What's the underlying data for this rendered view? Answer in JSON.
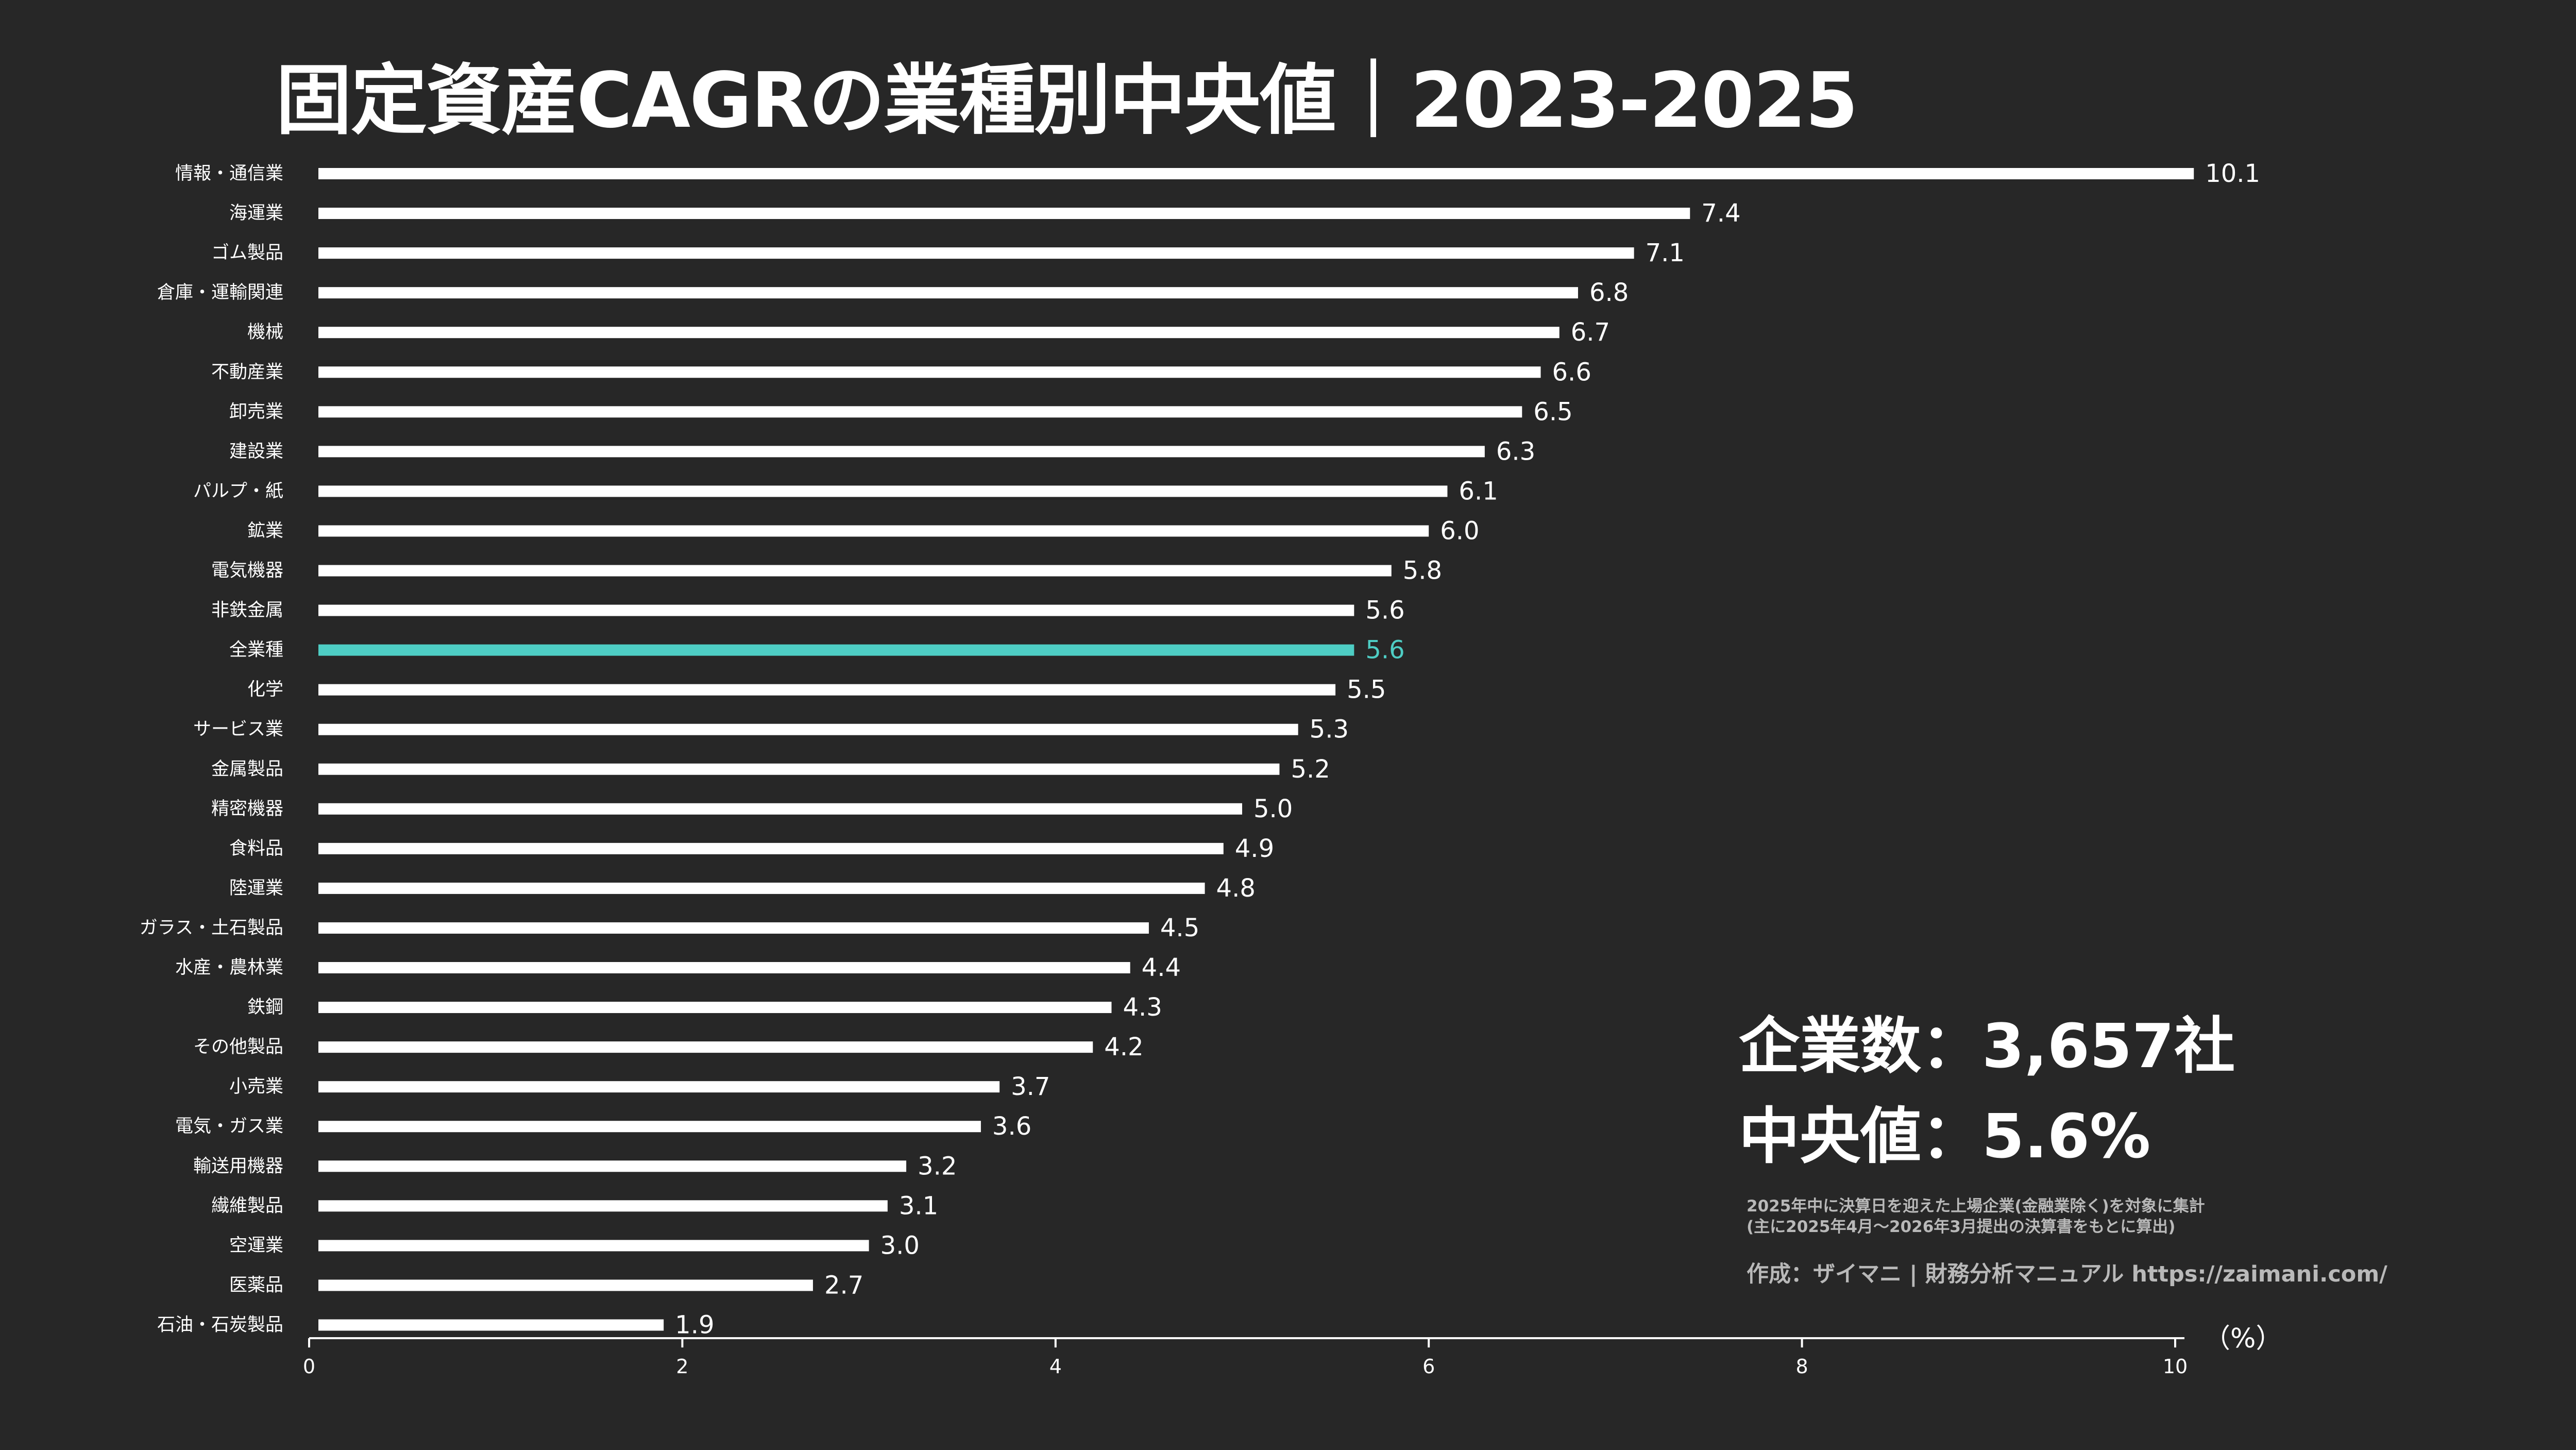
{
  "title": "固定資産CAGRの業種別中央値｜2023-2025",
  "stats": {
    "companies": "企業数：3,657社",
    "median": "中央値：5.6%"
  },
  "notes": {
    "line1": "2025年中に決算日を迎えた上場企業(金融業除く)を対象に集計",
    "line2": "(主に2025年4月〜2026年3月提出の決算書をもとに算出)"
  },
  "credit": "作成：ザイマニ | 財務分析マニュアル https://zaimani.com/",
  "colors": {
    "background": "#272727",
    "bar": "#ffffff",
    "highlight": "#4ecdc4",
    "note": "#b9b9b9"
  },
  "chart_data": {
    "type": "bar",
    "orientation": "horizontal",
    "categories": [
      "情報・通信業",
      "海運業",
      "ゴム製品",
      "倉庫・運輸関連",
      "機械",
      "不動産業",
      "卸売業",
      "建設業",
      "パルプ・紙",
      "鉱業",
      "電気機器",
      "非鉄金属",
      "全業種",
      "化学",
      "サービス業",
      "金属製品",
      "精密機器",
      "食料品",
      "陸運業",
      "ガラス・土石製品",
      "水産・農林業",
      "鉄鋼",
      "その他製品",
      "小売業",
      "電気・ガス業",
      "輸送用機器",
      "繊維製品",
      "空運業",
      "医薬品",
      "石油・石炭製品"
    ],
    "values": [
      10.1,
      7.4,
      7.1,
      6.8,
      6.7,
      6.6,
      6.5,
      6.3,
      6.1,
      6.0,
      5.8,
      5.6,
      5.6,
      5.5,
      5.3,
      5.2,
      5.0,
      4.9,
      4.8,
      4.5,
      4.4,
      4.3,
      4.2,
      3.7,
      3.6,
      3.2,
      3.1,
      3.0,
      2.7,
      1.9
    ],
    "value_labels": [
      "10.1",
      "7.4",
      "7.1",
      "6.8",
      "6.7",
      "6.6",
      "6.5",
      "6.3",
      "6.1",
      "6.0",
      "5.8",
      "5.6",
      "5.6",
      "5.5",
      "5.3",
      "5.2",
      "5.0",
      "4.9",
      "4.8",
      "4.5",
      "4.4",
      "4.3",
      "4.2",
      "3.7",
      "3.6",
      "3.2",
      "3.1",
      "3.0",
      "2.7",
      "1.9"
    ],
    "highlight_category": "全業種",
    "xlim": [
      0,
      10
    ],
    "xticks": [
      0,
      2,
      4,
      6,
      8,
      10
    ],
    "xtick_labels": [
      "0",
      "2",
      "4",
      "6",
      "8",
      "10"
    ],
    "xlabel": "（%）",
    "grid": false
  }
}
